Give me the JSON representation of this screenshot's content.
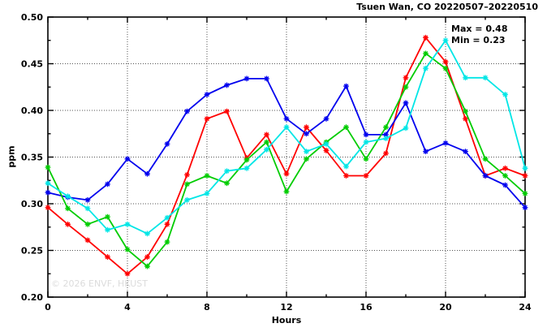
{
  "title": "Tsuen Wan, CO 20220507–20220510",
  "legend": {
    "max_label": "Max = 0.48",
    "min_label": "Min = 0.23"
  },
  "watermark": "© 2026 ENVF, HKUST",
  "chart_data": {
    "type": "line",
    "title": "Tsuen Wan, CO 20220507–20220510",
    "xlabel": "Hours",
    "ylabel": "ppm",
    "xlim": [
      0,
      24
    ],
    "ylim": [
      0.2,
      0.5
    ],
    "x_major_ticks": [
      0,
      4,
      8,
      12,
      16,
      20,
      24
    ],
    "x_minor_ticks": [
      2,
      6,
      10,
      14,
      18,
      22
    ],
    "y_major_ticks": [
      0.2,
      0.25,
      0.3,
      0.35,
      0.4,
      0.45,
      0.5
    ],
    "y_minor_ticks": [
      0.225,
      0.275,
      0.325,
      0.375,
      0.425,
      0.475
    ],
    "grid": "dotted lines at interior major ticks",
    "legend_position": "top-right-inside",
    "annotations": [
      "Max = 0.48",
      "Min = 0.23"
    ],
    "x": [
      0,
      1,
      2,
      3,
      4,
      5,
      6,
      7,
      8,
      9,
      10,
      11,
      12,
      13,
      14,
      15,
      16,
      17,
      18,
      19,
      20,
      21,
      22,
      23,
      24
    ],
    "series": [
      {
        "name": "red",
        "color": "#ff0000",
        "values": [
          0.296,
          0.278,
          0.261,
          0.243,
          0.225,
          0.243,
          0.278,
          0.331,
          0.391,
          0.399,
          0.349,
          0.374,
          0.332,
          0.382,
          0.357,
          0.33,
          0.33,
          0.354,
          0.435,
          0.478,
          0.452,
          0.391,
          0.33,
          0.338,
          0.33
        ]
      },
      {
        "name": "blue",
        "color": "#0000ee",
        "values": [
          0.312,
          0.307,
          0.304,
          0.321,
          0.348,
          0.332,
          0.364,
          0.399,
          0.417,
          0.427,
          0.434,
          0.434,
          0.391,
          0.375,
          0.391,
          0.426,
          0.374,
          0.374,
          0.408,
          0.356,
          0.365,
          0.356,
          0.33,
          0.32,
          0.296
        ]
      },
      {
        "name": "green",
        "color": "#00cc00",
        "values": [
          0.339,
          0.295,
          0.278,
          0.286,
          0.251,
          0.233,
          0.259,
          0.321,
          0.33,
          0.322,
          0.347,
          0.366,
          0.313,
          0.348,
          0.366,
          0.382,
          0.348,
          0.382,
          0.425,
          0.461,
          0.445,
          0.399,
          0.348,
          0.33,
          0.311
        ]
      },
      {
        "name": "cyan",
        "color": "#00e6e6",
        "values": [
          0.322,
          0.308,
          0.295,
          0.272,
          0.278,
          0.268,
          0.285,
          0.304,
          0.311,
          0.335,
          0.338,
          0.358,
          0.382,
          0.356,
          0.364,
          0.34,
          0.366,
          0.37,
          0.381,
          0.445,
          0.475,
          0.435,
          0.435,
          0.417,
          0.338
        ]
      }
    ]
  },
  "layout_colors": {
    "grid": "#555555",
    "frame": "#000000",
    "background": "#ffffff"
  }
}
